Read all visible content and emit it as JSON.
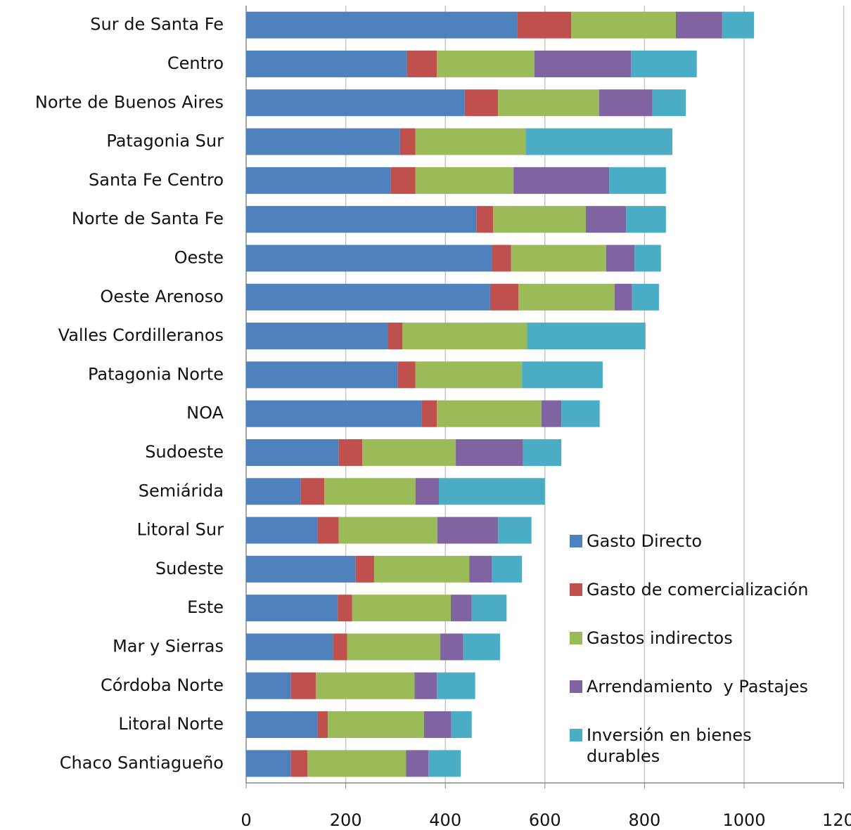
{
  "chart_data": {
    "type": "bar",
    "orientation": "horizontal",
    "stacked": true,
    "categories": [
      "Sur de Santa Fe",
      "Centro",
      "Norte de Buenos Aires",
      "Patagonia Sur",
      "Santa Fe Centro",
      "Norte de Santa Fe",
      "Oeste",
      "Oeste Arenoso",
      "Valles Cordilleranos",
      "Patagonia Norte",
      "NOA",
      "Sudoeste",
      "Semiárida",
      "Litoral Sur",
      "Sudeste",
      "Este",
      "Mar y Sierras",
      "Córdoba Norte",
      "Litoral Norte",
      "Chaco Santiagueño"
    ],
    "series": [
      {
        "name": "Gasto Directo",
        "color": "#4f81bd",
        "values": [
          544,
          323,
          439,
          309,
          290,
          463,
          493,
          490,
          284,
          304,
          353,
          186,
          110,
          144,
          220,
          184,
          174,
          90,
          144,
          90
        ]
      },
      {
        "name": "Gasto de comercialización",
        "color": "#c0504d",
        "values": [
          109,
          60,
          67,
          31,
          50,
          33,
          39,
          57,
          30,
          36,
          30,
          47,
          47,
          42,
          37,
          29,
          29,
          50,
          20,
          33
        ]
      },
      {
        "name": "Gastos indirectos",
        "color": "#9bbb59",
        "values": [
          210,
          196,
          203,
          221,
          197,
          186,
          191,
          193,
          250,
          214,
          210,
          188,
          183,
          198,
          191,
          198,
          187,
          198,
          193,
          198
        ]
      },
      {
        "name": "Arrendamiento  y Pastajes",
        "color": "#8064a2",
        "values": [
          93,
          194,
          107,
          0,
          192,
          81,
          57,
          35,
          0,
          0,
          40,
          135,
          47,
          122,
          45,
          42,
          46,
          45,
          55,
          45
        ]
      },
      {
        "name": "Inversión en bienes durables",
        "color": "#4bacc6",
        "values": [
          64,
          132,
          67,
          295,
          114,
          80,
          53,
          54,
          238,
          162,
          77,
          77,
          213,
          67,
          61,
          70,
          74,
          77,
          41,
          65
        ]
      }
    ],
    "xlim": [
      0,
      1200
    ],
    "xticks": [
      0,
      200,
      400,
      600,
      800,
      1000,
      1200
    ],
    "grid": true,
    "legend": "right"
  }
}
